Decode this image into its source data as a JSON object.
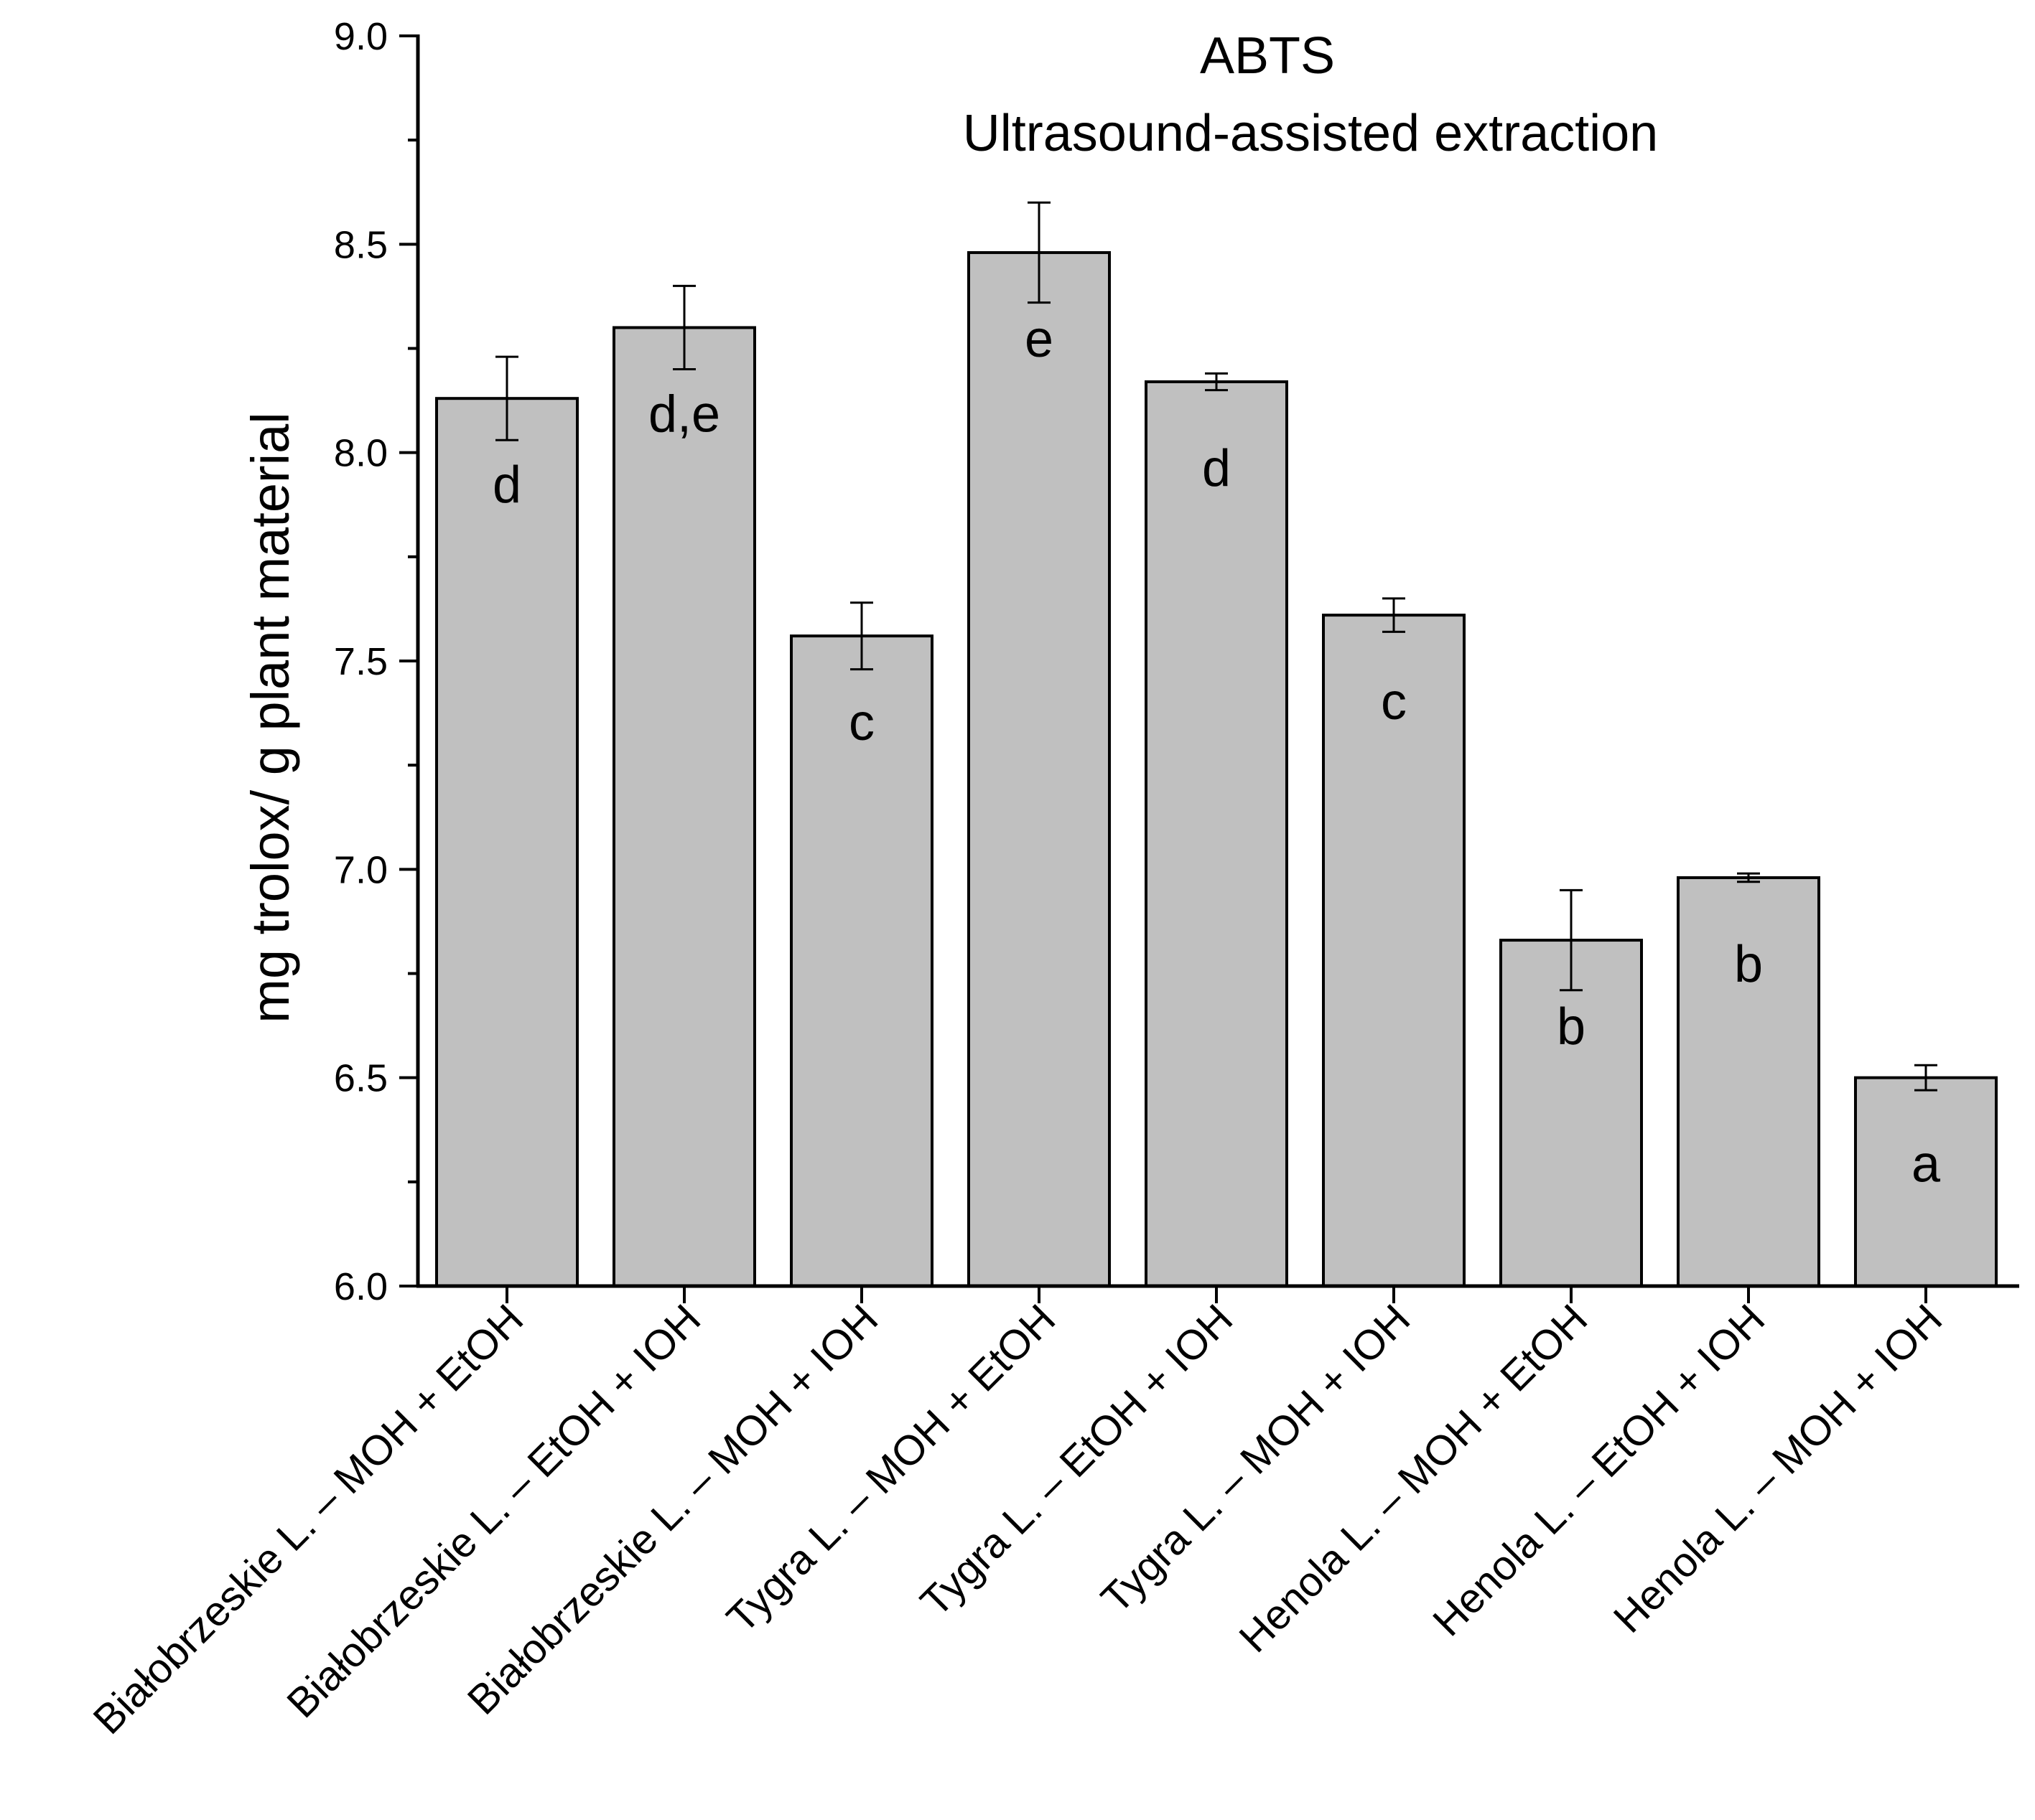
{
  "chart_data": {
    "type": "bar",
    "title_lines": [
      "ABTS",
      "Ultrasound-assisted extraction"
    ],
    "xlabel": "",
    "ylabel": "mg trolox/ g plant material",
    "ylim": [
      6.0,
      9.0
    ],
    "yticks": [
      6.0,
      6.5,
      7.0,
      7.5,
      8.0,
      8.5,
      9.0
    ],
    "ytick_labels": [
      "6.0",
      "6.5",
      "7.0",
      "7.5",
      "8.0",
      "8.5",
      "9.0"
    ],
    "categories": [
      "Białobrzeskie L. – MOH + EtOH",
      "Białobrzeskie L. – EtOH + IOH",
      "Białobrzeskie L. – MOH + IOH",
      "Tygra L. – MOH + EtOH",
      "Tygra L. – EtOH + IOH",
      "Tygra L. – MOH + IOH",
      "Henola L. – MOH + EtOH",
      "Henola L. – EtOH + IOH",
      "Henola L. – MOH + IOH"
    ],
    "values": [
      8.13,
      8.3,
      7.56,
      8.48,
      8.17,
      7.61,
      6.83,
      6.98,
      6.5
    ],
    "errors": [
      0.1,
      0.1,
      0.08,
      0.12,
      0.02,
      0.04,
      0.12,
      0.01,
      0.03
    ],
    "significance_labels": [
      "d",
      "d,e",
      "c",
      "e",
      "d",
      "c",
      "b",
      "b",
      "a"
    ],
    "bar_color": "#c0c0c0",
    "edge_color": "#000000"
  }
}
